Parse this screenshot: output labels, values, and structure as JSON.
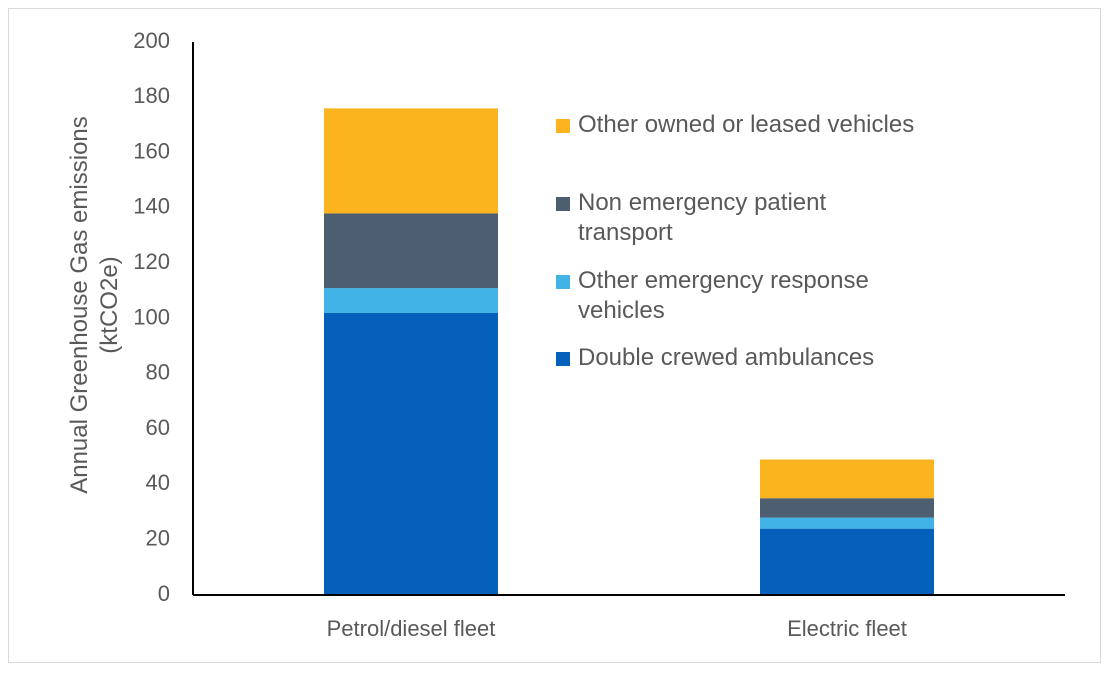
{
  "chart_data": {
    "type": "stacked_bar",
    "y_label": "Annual Greenhouse Gas emissions (ktCO2e)",
    "categories": [
      "Petrol/diesel fleet",
      "Electric fleet"
    ],
    "series": [
      {
        "name": "Double crewed ambulances",
        "color": "#0560bb",
        "values": [
          102,
          24
        ]
      },
      {
        "name": "Other emergency response vehicles",
        "color": "#41b3e6",
        "values": [
          9,
          4
        ]
      },
      {
        "name": "Non emergency patient transport",
        "color": "#4c5e70",
        "values": [
          27,
          7
        ]
      },
      {
        "name": "Other owned or leased vehicles",
        "color": "#fbb41e",
        "values": [
          38,
          14
        ]
      }
    ],
    "ylim": [
      0,
      200
    ],
    "yticks": [
      0,
      20,
      40,
      60,
      80,
      100,
      120,
      140,
      160,
      180,
      200
    ],
    "grid": false,
    "legend": "right"
  }
}
